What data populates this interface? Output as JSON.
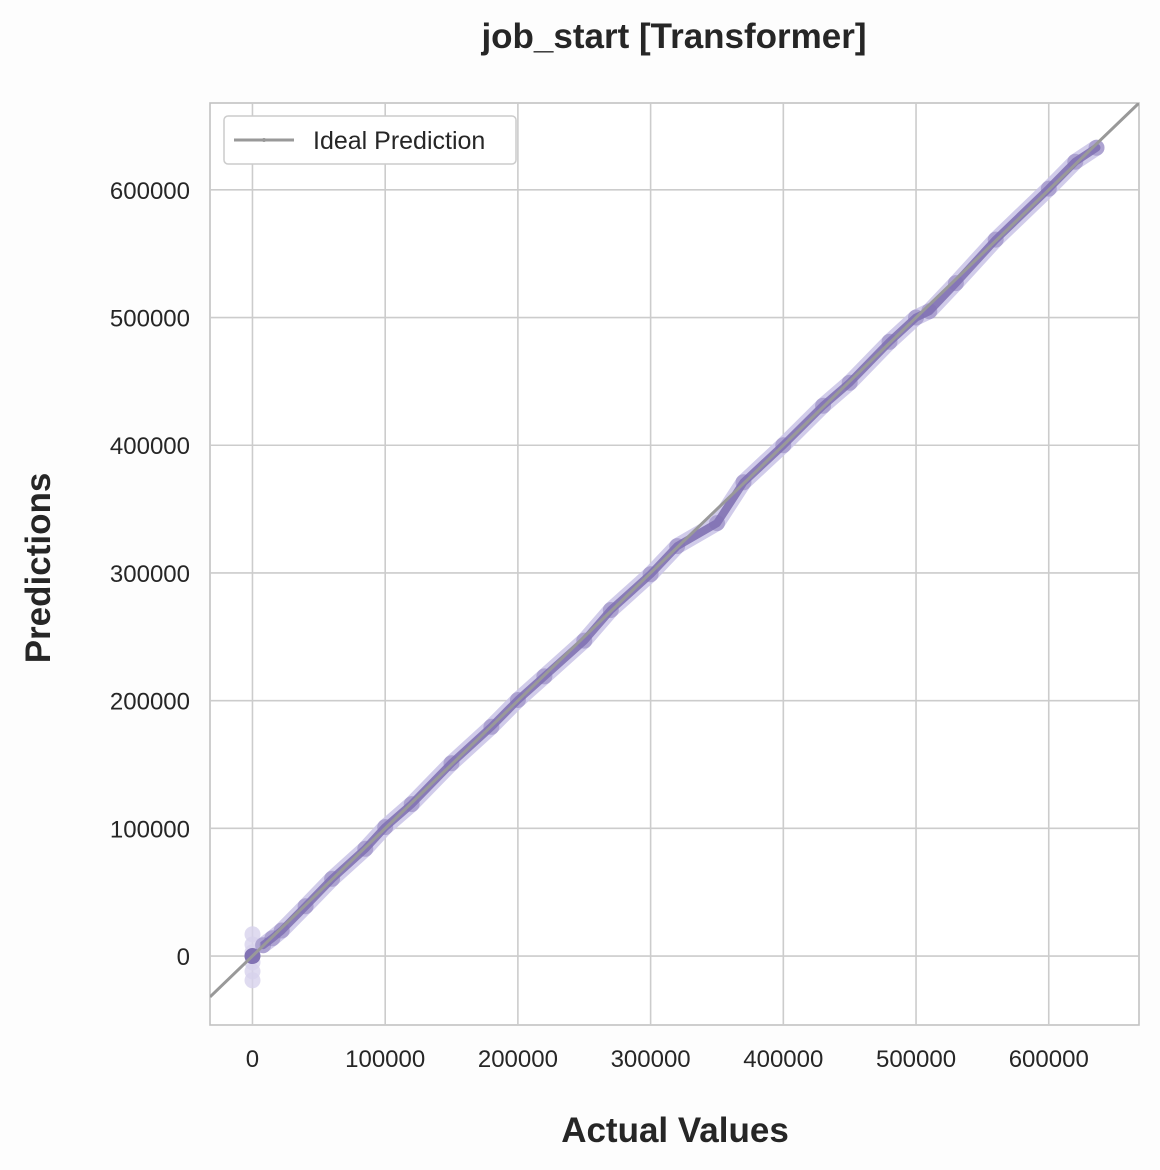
{
  "chart_data": {
    "type": "scatter",
    "title": "job_start [Transformer]",
    "xlabel": "Actual Values",
    "ylabel": "Predictions",
    "xlim": [
      -32000,
      668000
    ],
    "ylim": [
      -54000,
      668000
    ],
    "xticks": [
      0,
      100000,
      200000,
      300000,
      400000,
      500000,
      600000
    ],
    "yticks": [
      0,
      100000,
      200000,
      300000,
      400000,
      500000,
      600000
    ],
    "xtick_labels": [
      "0",
      "100000",
      "200000",
      "300000",
      "400000",
      "500000",
      "600000"
    ],
    "ytick_labels": [
      "0",
      "100000",
      "200000",
      "300000",
      "400000",
      "500000",
      "600000"
    ],
    "grid": true,
    "legend": {
      "position": "top-left",
      "entries": [
        "Ideal Prediction"
      ]
    },
    "series": [
      {
        "kind": "points",
        "color": "#8172b3",
        "x": [
          0,
          0,
          0,
          0,
          0,
          0,
          0,
          8000,
          15000,
          22000,
          40000,
          60000,
          85000,
          100000,
          120000,
          150000,
          180000,
          200000,
          220000,
          250000,
          270000,
          300000,
          320000,
          350000,
          370000,
          400000,
          430000,
          450000,
          480000,
          500000,
          510000,
          530000,
          560000,
          600000,
          620000,
          636000
        ],
        "y": [
          0,
          17000,
          9000,
          -5000,
          -12000,
          -19000,
          3000,
          8500,
          14000,
          20000,
          39000,
          60500,
          84000,
          101000,
          119000,
          151000,
          179500,
          200500,
          219000,
          247000,
          271000,
          299000,
          321000,
          339000,
          371000,
          400000,
          431000,
          449000,
          481000,
          500000,
          505000,
          527000,
          561000,
          601000,
          622000,
          633000
        ]
      },
      {
        "kind": "line",
        "name": "Ideal Prediction",
        "color": "#999999",
        "x": [
          -32000,
          668000
        ],
        "y": [
          -32000,
          668000
        ]
      }
    ]
  }
}
